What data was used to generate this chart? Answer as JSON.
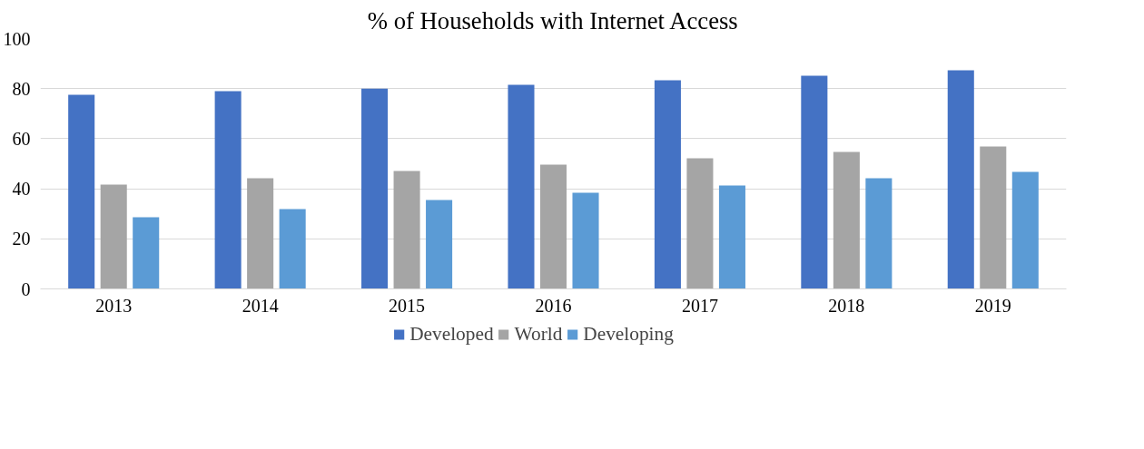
{
  "chart_data": {
    "type": "bar",
    "title": "% of Households with Internet Access",
    "categories": [
      "2013",
      "2014",
      "2015",
      "2016",
      "2017",
      "2018",
      "2019"
    ],
    "series": [
      {
        "name": "Developed",
        "color": "#4472c4",
        "values": [
          77.5,
          79,
          80,
          81.5,
          83.3,
          85.1,
          87.3
        ]
      },
      {
        "name": "World",
        "color": "#a5a5a5",
        "values": [
          41.7,
          44.2,
          47.1,
          49.6,
          52.2,
          54.7,
          56.9
        ]
      },
      {
        "name": "Developing",
        "color": "#5b9bd5",
        "values": [
          28.6,
          31.9,
          35.5,
          38.4,
          41.3,
          44.2,
          46.7
        ]
      }
    ],
    "ylim": [
      0,
      100
    ],
    "yticks": [
      0,
      20,
      40,
      60,
      80,
      100
    ],
    "grid": "y",
    "legend": "bottom"
  }
}
